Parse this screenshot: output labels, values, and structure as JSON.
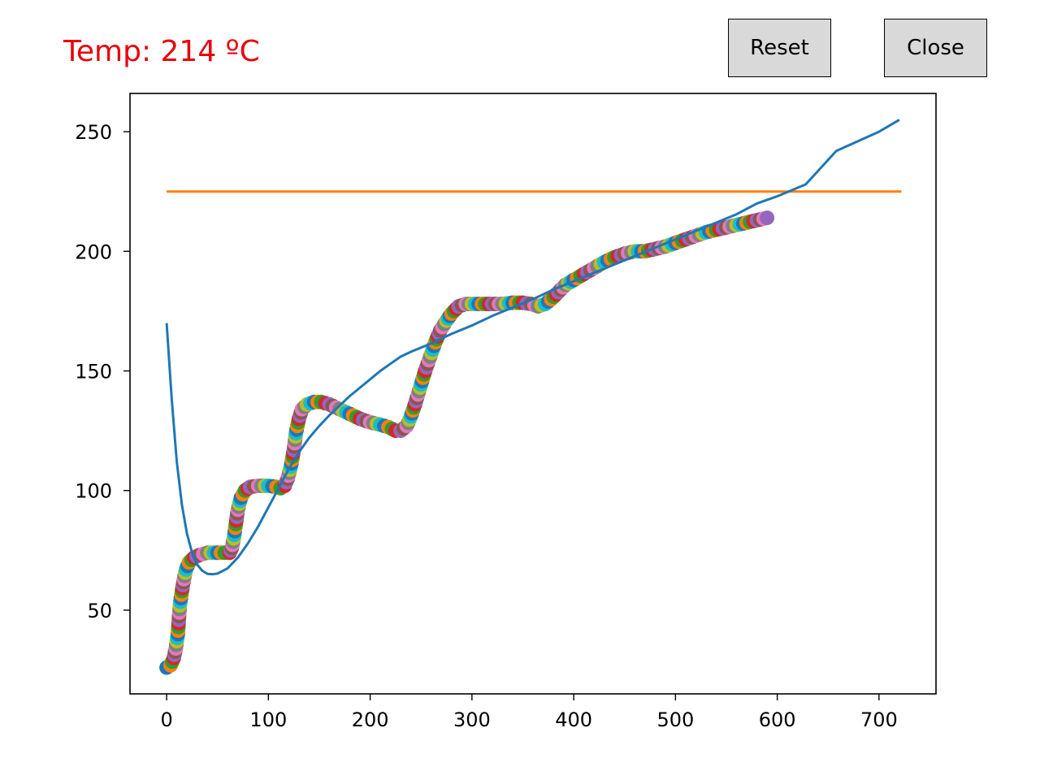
{
  "readout": {
    "label": "Temp: 214 ºC",
    "color": "#e8000b"
  },
  "buttons": {
    "reset_label": "Reset",
    "close_label": "Close"
  },
  "chart_data": {
    "type": "line",
    "title": "",
    "xlabel": "",
    "ylabel": "",
    "xlim": [
      -36,
      756
    ],
    "ylim": [
      15,
      266
    ],
    "xticks": [
      0,
      100,
      200,
      300,
      400,
      500,
      600,
      700
    ],
    "yticks": [
      50,
      100,
      150,
      200,
      250
    ],
    "grid": false,
    "legend": "none",
    "series": [
      {
        "kind": "line",
        "color": "#1f77b4",
        "points": [
          [
            0,
            170
          ],
          [
            5,
            138
          ],
          [
            10,
            112
          ],
          [
            15,
            94
          ],
          [
            20,
            82
          ],
          [
            25,
            74
          ],
          [
            30,
            69
          ],
          [
            35,
            66.5
          ],
          [
            40,
            65.2
          ],
          [
            45,
            65
          ],
          [
            50,
            65.3
          ],
          [
            60,
            67.5
          ],
          [
            70,
            72
          ],
          [
            80,
            78
          ],
          [
            90,
            85
          ],
          [
            100,
            93
          ],
          [
            110,
            101
          ],
          [
            120,
            109
          ],
          [
            130,
            116
          ],
          [
            140,
            122
          ],
          [
            150,
            127
          ],
          [
            160,
            131.5
          ],
          [
            170,
            135.5
          ],
          [
            180,
            139.5
          ],
          [
            190,
            143
          ],
          [
            200,
            146.5
          ],
          [
            210,
            150
          ],
          [
            220,
            153
          ],
          [
            230,
            156
          ],
          [
            240,
            158
          ],
          [
            260,
            161.5
          ],
          [
            280,
            165.5
          ],
          [
            300,
            169
          ],
          [
            320,
            173
          ],
          [
            340,
            176.5
          ],
          [
            360,
            180
          ],
          [
            380,
            184
          ],
          [
            400,
            187.5
          ],
          [
            420,
            191
          ],
          [
            440,
            194.5
          ],
          [
            460,
            198
          ],
          [
            480,
            201.5
          ],
          [
            500,
            205
          ],
          [
            520,
            208.5
          ],
          [
            540,
            212
          ],
          [
            560,
            215.5
          ],
          [
            580,
            220
          ],
          [
            600,
            223
          ],
          [
            628,
            228
          ],
          [
            658,
            242
          ],
          [
            700,
            250
          ],
          [
            720,
            255
          ]
        ]
      },
      {
        "kind": "line",
        "color": "#ff7f0e",
        "points": [
          [
            0,
            225
          ],
          [
            722,
            225
          ]
        ]
      },
      {
        "kind": "scatter",
        "cycle_colors": [
          "#1f77b4",
          "#ff7f0e",
          "#2ca02c",
          "#d62728",
          "#9467bd",
          "#8c564b",
          "#e377c2",
          "#7f7f7f",
          "#bcbd22",
          "#17becf"
        ],
        "last_color": "#9467bd",
        "path": [
          [
            0,
            26
          ],
          [
            4,
            27
          ],
          [
            7,
            30
          ],
          [
            9,
            34
          ],
          [
            11,
            40
          ],
          [
            12,
            46
          ],
          [
            13,
            52
          ],
          [
            15,
            58
          ],
          [
            17,
            63
          ],
          [
            19,
            67
          ],
          [
            22,
            70
          ],
          [
            27,
            72
          ],
          [
            32,
            73
          ],
          [
            40,
            74
          ],
          [
            50,
            74
          ],
          [
            57,
            74
          ],
          [
            62,
            74
          ],
          [
            64,
            76
          ],
          [
            66,
            80
          ],
          [
            68,
            86
          ],
          [
            70,
            92
          ],
          [
            73,
            97
          ],
          [
            77,
            100
          ],
          [
            82,
            101.5
          ],
          [
            90,
            102
          ],
          [
            100,
            102
          ],
          [
            108,
            101.5
          ],
          [
            112,
            101
          ],
          [
            116,
            102
          ],
          [
            119,
            105
          ],
          [
            122,
            110
          ],
          [
            125,
            117
          ],
          [
            127,
            124
          ],
          [
            130,
            130
          ],
          [
            133,
            134
          ],
          [
            138,
            136
          ],
          [
            145,
            137
          ],
          [
            152,
            137
          ],
          [
            160,
            136
          ],
          [
            170,
            134
          ],
          [
            180,
            132
          ],
          [
            190,
            130
          ],
          [
            200,
            128.5
          ],
          [
            210,
            127.5
          ],
          [
            218,
            126.5
          ],
          [
            225,
            125
          ],
          [
            230,
            125
          ],
          [
            236,
            127
          ],
          [
            240,
            131
          ],
          [
            244,
            136
          ],
          [
            249,
            143
          ],
          [
            254,
            150
          ],
          [
            259,
            156
          ],
          [
            264,
            162
          ],
          [
            269,
            167
          ],
          [
            275,
            171
          ],
          [
            280,
            174
          ],
          [
            287,
            177
          ],
          [
            294,
            178
          ],
          [
            300,
            178
          ],
          [
            310,
            178
          ],
          [
            320,
            178
          ],
          [
            330,
            178
          ],
          [
            340,
            178.5
          ],
          [
            350,
            178.5
          ],
          [
            358,
            178
          ],
          [
            365,
            177
          ],
          [
            372,
            178
          ],
          [
            378,
            180
          ],
          [
            385,
            183
          ],
          [
            392,
            186
          ],
          [
            400,
            188
          ],
          [
            410,
            190.5
          ],
          [
            420,
            193
          ],
          [
            430,
            195.5
          ],
          [
            440,
            197.5
          ],
          [
            450,
            199
          ],
          [
            460,
            200
          ],
          [
            470,
            200
          ],
          [
            480,
            201
          ],
          [
            490,
            202
          ],
          [
            500,
            203.5
          ],
          [
            510,
            205
          ],
          [
            520,
            206.5
          ],
          [
            530,
            208
          ],
          [
            540,
            209
          ],
          [
            550,
            210
          ],
          [
            560,
            211
          ],
          [
            570,
            212
          ],
          [
            580,
            213
          ],
          [
            590,
            214
          ]
        ]
      }
    ]
  }
}
